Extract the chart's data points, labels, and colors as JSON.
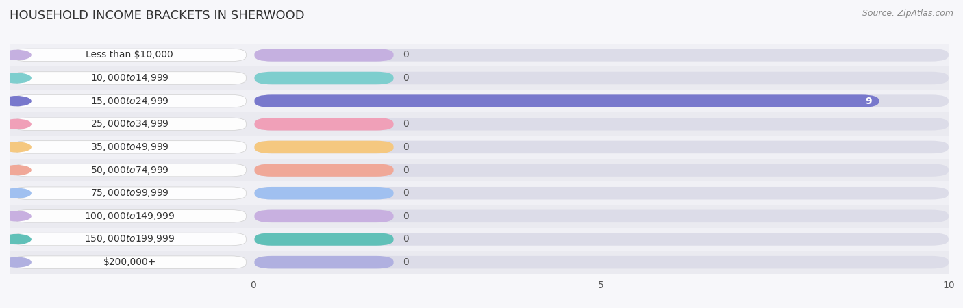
{
  "title": "HOUSEHOLD INCOME BRACKETS IN SHERWOOD",
  "source_text": "Source: ZipAtlas.com",
  "categories": [
    "Less than $10,000",
    "$10,000 to $14,999",
    "$15,000 to $24,999",
    "$25,000 to $34,999",
    "$35,000 to $49,999",
    "$50,000 to $74,999",
    "$75,000 to $99,999",
    "$100,000 to $149,999",
    "$150,000 to $199,999",
    "$200,000+"
  ],
  "values": [
    0,
    0,
    9,
    0,
    0,
    0,
    0,
    0,
    0,
    0
  ],
  "bar_colors": [
    "#c5b0e0",
    "#7ecece",
    "#7878cc",
    "#f0a0b8",
    "#f5c880",
    "#f0a898",
    "#a0c0f0",
    "#c8b0e0",
    "#60c0b8",
    "#b0b0e0"
  ],
  "xlim": [
    0,
    10
  ],
  "xticks": [
    0,
    5,
    10
  ],
  "fig_bg": "#f7f7fa",
  "row_bg_even": "#f0f0f5",
  "row_bg_odd": "#eaeaf0",
  "bar_bg_color": "#dcdce8",
  "title_fontsize": 13,
  "tick_fontsize": 10,
  "label_fontsize": 10,
  "value_fontsize": 10
}
